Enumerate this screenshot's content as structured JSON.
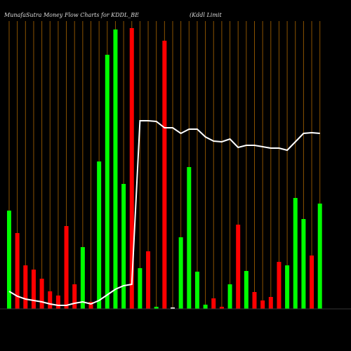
{
  "chart_data": {
    "type": "bar",
    "title": "MunafaSutra  Money Flow  Charts for KDDL_BE",
    "subtitle": "(Kddl Limit",
    "categories": [
      null,
      null,
      null,
      null,
      null,
      null,
      null,
      null,
      null,
      null,
      null,
      null,
      null,
      null,
      null,
      null,
      null,
      null,
      null,
      null,
      null,
      null,
      null,
      null,
      null,
      null,
      null,
      null,
      null,
      null,
      null,
      null,
      null,
      null,
      null,
      null,
      null,
      null,
      null
    ],
    "ylim": [
      0,
      400
    ],
    "series": [
      {
        "type": "bar",
        "values": [
          140,
          108,
          62,
          56,
          43,
          25,
          19,
          118,
          35,
          88,
          10,
          210,
          362,
          398,
          178,
          400,
          58,
          82,
          3,
          382,
          2,
          102,
          202,
          53,
          6,
          15,
          3,
          35,
          120,
          54,
          24,
          12,
          17,
          67,
          62,
          158,
          128,
          76,
          150
        ],
        "colors": [
          "#00ff00",
          "#ff0000",
          "#ff0000",
          "#ff0000",
          "#ff0000",
          "#ff0000",
          "#ff0000",
          "#ff0000",
          "#ff0000",
          "#00ff00",
          "#ff0000",
          "#00ff00",
          "#00ff00",
          "#00ff00",
          "#00ff00",
          "#ff0000",
          "#00ff00",
          "#ff0000",
          "#00ff00",
          "#ff0000",
          "#ffffff",
          "#00ff00",
          "#00ff00",
          "#00ff00",
          "#00ff00",
          "#ff0000",
          "#ff0000",
          "#00ff00",
          "#ff0000",
          "#00ff00",
          "#ff0000",
          "#ff0000",
          "#ff0000",
          "#ff0000",
          "#00ff00",
          "#00ff00",
          "#00ff00",
          "#ff0000",
          "#00ff00"
        ]
      },
      {
        "type": "line",
        "color": "#ffffff",
        "values": [
          25,
          18,
          14,
          12,
          10,
          7,
          5,
          5,
          8,
          10,
          7,
          12,
          20,
          28,
          33,
          35,
          268,
          268,
          267,
          258,
          258,
          250,
          256,
          256,
          245,
          239,
          238,
          242,
          230,
          233,
          233,
          231,
          229,
          229,
          226,
          238,
          250,
          251,
          250
        ]
      }
    ]
  }
}
